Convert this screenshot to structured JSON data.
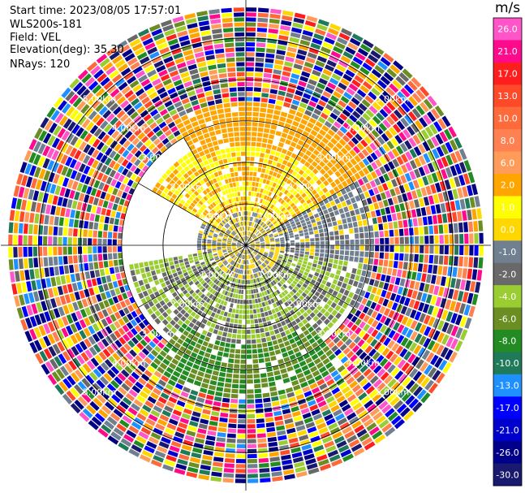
{
  "header": {
    "start_time": "Start time: 2023/08/05 17:57:01",
    "instrument": "WLS200s-181",
    "field": "Field: VEL",
    "elevation": "Elevation(deg): 35.30",
    "nrays": "NRays: 120"
  },
  "chart_data": {
    "type": "ppi-velocity",
    "field": "VEL",
    "units": "m/s",
    "elevation_deg": 35.3,
    "n_rays": 120,
    "range_rings_km": [
      1.0,
      2.0,
      3.0,
      4.0,
      5.0
    ],
    "range_ring_labels": [
      "1.00km",
      "2.00km",
      "3.00km",
      "4.00km",
      "5.00km"
    ],
    "max_range_km": 5.8,
    "radial_spokes_deg": [
      0,
      30,
      60,
      90,
      120,
      150,
      180,
      210,
      240,
      270,
      300,
      330
    ],
    "colorbar": {
      "unit": "m/s",
      "ticks": [
        26.0,
        21.0,
        17.0,
        13.0,
        10.0,
        8.0,
        6.0,
        2.0,
        1.0,
        0.0,
        -1.0,
        -2.0,
        -4.0,
        -6.0,
        -8.0,
        -10.0,
        -13.0,
        -17.0,
        -21.0,
        -26.0,
        -30.0
      ],
      "tick_labels": [
        "26.0",
        "21.0",
        "17.0",
        "13.0",
        "10.0",
        "8.0",
        "6.0",
        "2.0",
        "1.0",
        "0.0",
        "-1.0",
        "-2.0",
        "-4.0",
        "-6.0",
        "-8.0",
        "-10.0",
        "-13.0",
        "-17.0",
        "-21.0",
        "-26.0",
        "-30.0"
      ],
      "colors": [
        "#ff55c8",
        "#ff0a8c",
        "#ff1e1e",
        "#ff4a2a",
        "#ff6a3a",
        "#ff8050",
        "#ff9c5a",
        "#ffa500",
        "#ffff00",
        "#ffd700",
        "#708090",
        "#696969",
        "#9acd32",
        "#6b8e23",
        "#228b22",
        "#1f7a5a",
        "#1e90ff",
        "#0000ff",
        "#0000cd",
        "#00008b",
        "#191970",
        "#000080"
      ]
    },
    "regions": [
      {
        "name": "inner-gray",
        "r_min_km": 0.0,
        "r_max_km": 1.1,
        "value": 0.0
      },
      {
        "name": "north-yellow",
        "r_min_km": 0.8,
        "r_max_km": 2.6,
        "az_from": 300,
        "az_to": 60,
        "value": 2.0
      },
      {
        "name": "north-orange",
        "r_min_km": 2.3,
        "r_max_km": 3.4,
        "az_from": 330,
        "az_to": 60,
        "value": 4.0
      },
      {
        "name": "west-east-gray",
        "r_min_km": 0.8,
        "r_max_km": 3.0,
        "az_from": 60,
        "az_to": 120,
        "value": -0.5
      },
      {
        "name": "south-green",
        "r_min_km": 0.8,
        "r_max_km": 2.8,
        "az_from": 100,
        "az_to": 260,
        "value": -2.0
      },
      {
        "name": "south-darkgreen",
        "r_min_km": 2.3,
        "r_max_km": 3.6,
        "az_from": 140,
        "az_to": 220,
        "value": -6.0
      }
    ]
  }
}
